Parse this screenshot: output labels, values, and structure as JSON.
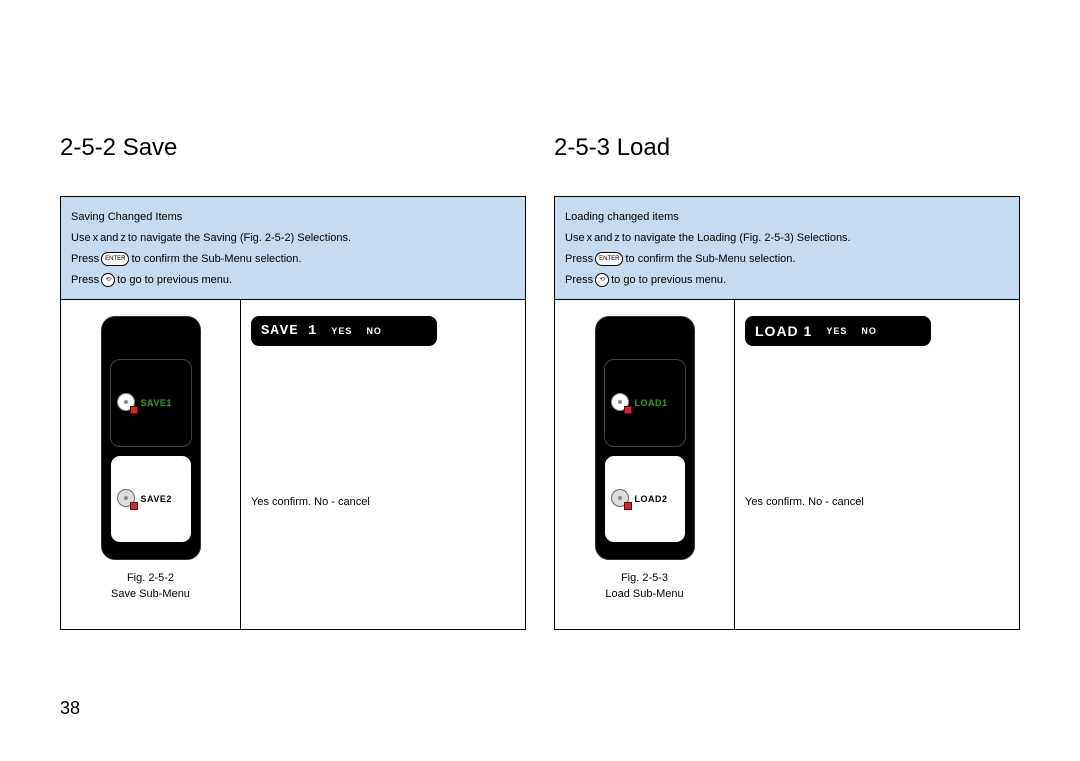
{
  "page_number": "38",
  "left": {
    "title": "2-5-2 Save",
    "instructions": {
      "line1": "Saving Changed Items",
      "line2_a": "Use ",
      "line2_b": "x",
      "line2_c": " and ",
      "line2_d": "z",
      "line2_e": " to navigate the Saving (Fig. 2-5-2) Selections.",
      "line3_a": "Press",
      "line3_btn": "ENTER",
      "line3_b": " to confirm the Sub-Menu selection.",
      "line4_a": "Press",
      "line4_btn": "⟲",
      "line4_b": " to go to previous menu."
    },
    "screen": {
      "slot1_label": "SAVE1",
      "slot2_label": "SAVE2"
    },
    "caption_a": "Fig. 2-5-2",
    "caption_b": "Save Sub-Menu",
    "confirm_bar": {
      "main": "SAVE 1",
      "yes": "YES",
      "no": "NO"
    },
    "right_text": "Yes   confirm. No - cancel"
  },
  "right": {
    "title": "2-5-3 Load",
    "instructions": {
      "line1": "Loading changed items",
      "line2_a": "Use ",
      "line2_b": "x",
      "line2_c": " and ",
      "line2_d": "z",
      "line2_e": " to navigate the Loading (Fig. 2-5-3) Selections.",
      "line3_a": "Press",
      "line3_btn": "ENTER",
      "line3_b": " to confirm the Sub-Menu selection.",
      "line4_a": "Press",
      "line4_btn": "⟲",
      "line4_b": " to go to previous menu."
    },
    "screen": {
      "slot1_label": "LOAD1",
      "slot2_label": "LOAD2"
    },
    "caption_a": "Fig. 2-5-3",
    "caption_b": "Load Sub-Menu",
    "confirm_bar": {
      "main": "LOAD 1",
      "yes": "YES",
      "no": "NO"
    },
    "right_text": "Yes   confirm. No - cancel"
  },
  "colors": {
    "blue_box_bg": "#c6daf0",
    "page_bg": "#ffffff",
    "screen_bg": "#000000",
    "selected_text": "#3a8a3a"
  }
}
